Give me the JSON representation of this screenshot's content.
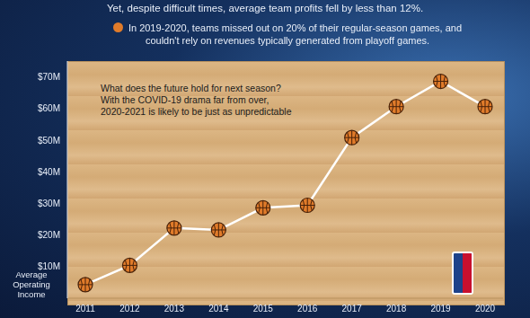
{
  "chart_data": {
    "type": "line",
    "title": "Yet, despite difficult times, average team profits fell by less than 12%.",
    "subtitle": "In 2019-2020, teams missed out on 20% of their regular-season games, and couldn't rely on revenues typically generated from playoff games.",
    "annotations": [
      "What does the future hold for next season? With the COVID-19 drama far from over, 2020-2021 is likely to be just as unpredictable"
    ],
    "y_label": "Average Operating Income",
    "categories": [
      "2011",
      "2012",
      "2013",
      "2014",
      "2015",
      "2016",
      "2017",
      "2018",
      "2019",
      "2020"
    ],
    "series": [
      {
        "name": "Average Operating Income",
        "color": "#ffffff",
        "marker": "basketball",
        "values": [
          4.3,
          10.4,
          22.2,
          21.6,
          28.6,
          29.4,
          50.8,
          60.6,
          68.6,
          60.6
        ]
      }
    ],
    "marker_color": "#e07b2a",
    "ylim": [
      0,
      75
    ],
    "yticks": [
      {
        "value": 10,
        "label": "$10M"
      },
      {
        "value": 20,
        "label": "$20M"
      },
      {
        "value": 30,
        "label": "$30M"
      },
      {
        "value": 40,
        "label": "$40M"
      },
      {
        "value": 50,
        "label": "$50M"
      },
      {
        "value": 60,
        "label": "$60M"
      },
      {
        "value": 70,
        "label": "$70M"
      }
    ],
    "grid": false
  }
}
